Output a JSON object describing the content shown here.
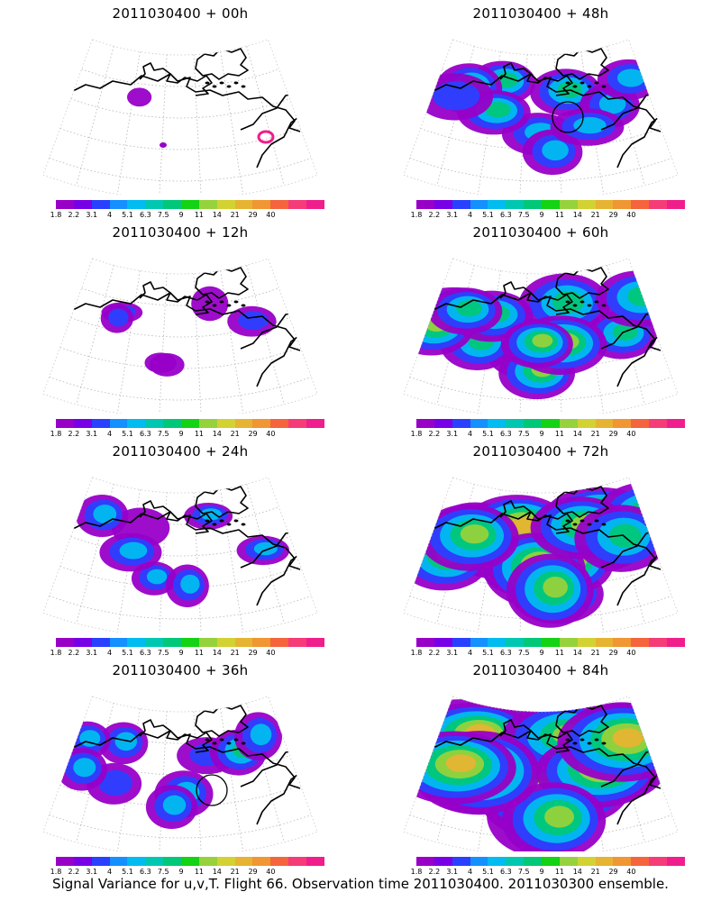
{
  "figure": {
    "caption": "Signal Variance for u,v,T. Flight 66. Observation time 2011030400. 2011030300 ensemble."
  },
  "colorbar": {
    "colors": [
      "#9800c8",
      "#7800e6",
      "#2a40ff",
      "#1490ff",
      "#00bcf0",
      "#00c8b0",
      "#00c878",
      "#14d214",
      "#96d23c",
      "#d2d232",
      "#e6b432",
      "#f09632",
      "#f5643c",
      "#f53c78",
      "#f01e8c"
    ],
    "labels": [
      "1.8",
      "2.2",
      "3.1",
      "4",
      "5.1",
      "6.3",
      "7.5",
      "9",
      "11",
      "14",
      "21",
      "29",
      "40"
    ]
  },
  "panels": [
    {
      "title": "2011030400 + 00h",
      "intensity": 0,
      "circle": false
    },
    {
      "title": "2011030400 + 48h",
      "intensity": 2,
      "circle": true
    },
    {
      "title": "2011030400 + 12h",
      "intensity": 0.5,
      "circle": false
    },
    {
      "title": "2011030400 + 60h",
      "intensity": 3,
      "circle": false
    },
    {
      "title": "2011030400 + 24h",
      "intensity": 1,
      "circle": false
    },
    {
      "title": "2011030400 + 72h",
      "intensity": 4,
      "circle": false
    },
    {
      "title": "2011030400 + 36h",
      "intensity": 1.5,
      "circle": true
    },
    {
      "title": "2011030400 + 84h",
      "intensity": 5,
      "circle": false
    }
  ]
}
